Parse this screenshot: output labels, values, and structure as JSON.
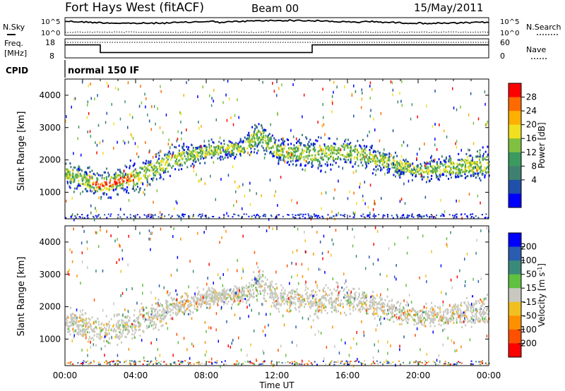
{
  "header": {
    "station": "Fort Hays West (fitACF)",
    "beam": "Beam 00",
    "date": "15/May/2011"
  },
  "noise_panel": {
    "left_label": "N.Sky",
    "right_label": "N.Search",
    "left_ticks": [
      "10^5",
      "10^0"
    ],
    "right_ticks": [
      "10^5",
      "10^0"
    ]
  },
  "freq_panel": {
    "left_label_1": "Freq.",
    "left_label_2": "[MHz]",
    "right_label": "Nave",
    "left_ticks": [
      "18",
      "8"
    ],
    "right_ticks": [
      "60",
      "0"
    ],
    "freq_series": [
      {
        "t": 0.0,
        "f": 16
      },
      {
        "t": 2.0,
        "f": 16
      },
      {
        "t": 2.0,
        "f": 10
      },
      {
        "t": 14.0,
        "f": 10
      },
      {
        "t": 14.0,
        "f": 16
      },
      {
        "t": 24.0,
        "f": 16
      }
    ]
  },
  "cpid": {
    "label": "CPID",
    "value": "normal 150 IF"
  },
  "time_axis": {
    "ticks": [
      "00:00",
      "04:00",
      "08:00",
      "12:00",
      "16:00",
      "20:00",
      "00:00"
    ],
    "label": "Time UT"
  },
  "chart_data": [
    {
      "type": "heatmap",
      "title": "",
      "ylabel": "Slant Range [km]",
      "xlabel": "Time UT",
      "ylim": [
        180,
        4500
      ],
      "xlim": [
        0,
        24
      ],
      "yticks": [
        "1000",
        "2000",
        "3000",
        "4000"
      ],
      "colorbar": {
        "label": "Power [dB]",
        "ticks": [
          "28",
          "24",
          "20",
          "16",
          "12",
          "8",
          "4"
        ],
        "colors": [
          "#ff0000",
          "#ff6a00",
          "#ffb000",
          "#f0e020",
          "#80c040",
          "#3a9a60",
          "#408070",
          "#2050a8",
          "#0000ff"
        ]
      },
      "echo_band": [
        {
          "t": 0.0,
          "center": 1600,
          "width": 500
        },
        {
          "t": 2.0,
          "center": 1250,
          "width": 600
        },
        {
          "t": 4.0,
          "center": 1500,
          "width": 700
        },
        {
          "t": 6.0,
          "center": 2000,
          "width": 600
        },
        {
          "t": 8.0,
          "center": 2300,
          "width": 400
        },
        {
          "t": 10.0,
          "center": 2400,
          "width": 400
        },
        {
          "t": 11.0,
          "center": 2800,
          "width": 700
        },
        {
          "t": 12.0,
          "center": 2300,
          "width": 500
        },
        {
          "t": 14.0,
          "center": 2200,
          "width": 700
        },
        {
          "t": 16.0,
          "center": 2300,
          "width": 600
        },
        {
          "t": 18.0,
          "center": 2000,
          "width": 500
        },
        {
          "t": 20.0,
          "center": 1700,
          "width": 400
        },
        {
          "t": 24.0,
          "center": 1900,
          "width": 700
        }
      ]
    },
    {
      "type": "heatmap",
      "title": "",
      "ylabel": "Slant Range [km]",
      "xlabel": "Time UT",
      "ylim": [
        180,
        4500
      ],
      "xlim": [
        0,
        24
      ],
      "yticks": [
        "1000",
        "2000",
        "3000",
        "4000"
      ],
      "colorbar": {
        "label": "Velocity [m s^-1]",
        "ticks": [
          "200",
          "100",
          "50",
          "15",
          "-15",
          "-50",
          "-100",
          "-200"
        ],
        "colors": [
          "#0000ff",
          "#2a5cb0",
          "#3a8a7a",
          "#60c040",
          "#c8c8c0",
          "#f0c020",
          "#ff9000",
          "#ff5000",
          "#ff0000"
        ]
      },
      "echo_band": [
        {
          "t": 0.0,
          "center": 1600,
          "width": 500
        },
        {
          "t": 2.0,
          "center": 1250,
          "width": 600
        },
        {
          "t": 4.0,
          "center": 1500,
          "width": 700
        },
        {
          "t": 6.0,
          "center": 2000,
          "width": 600
        },
        {
          "t": 8.0,
          "center": 2300,
          "width": 400
        },
        {
          "t": 10.0,
          "center": 2400,
          "width": 400
        },
        {
          "t": 11.0,
          "center": 2800,
          "width": 700
        },
        {
          "t": 12.0,
          "center": 2300,
          "width": 500
        },
        {
          "t": 14.0,
          "center": 2200,
          "width": 700
        },
        {
          "t": 16.0,
          "center": 2300,
          "width": 600
        },
        {
          "t": 18.0,
          "center": 2000,
          "width": 500
        },
        {
          "t": 20.0,
          "center": 1700,
          "width": 400
        },
        {
          "t": 24.0,
          "center": 1900,
          "width": 700
        }
      ]
    }
  ]
}
